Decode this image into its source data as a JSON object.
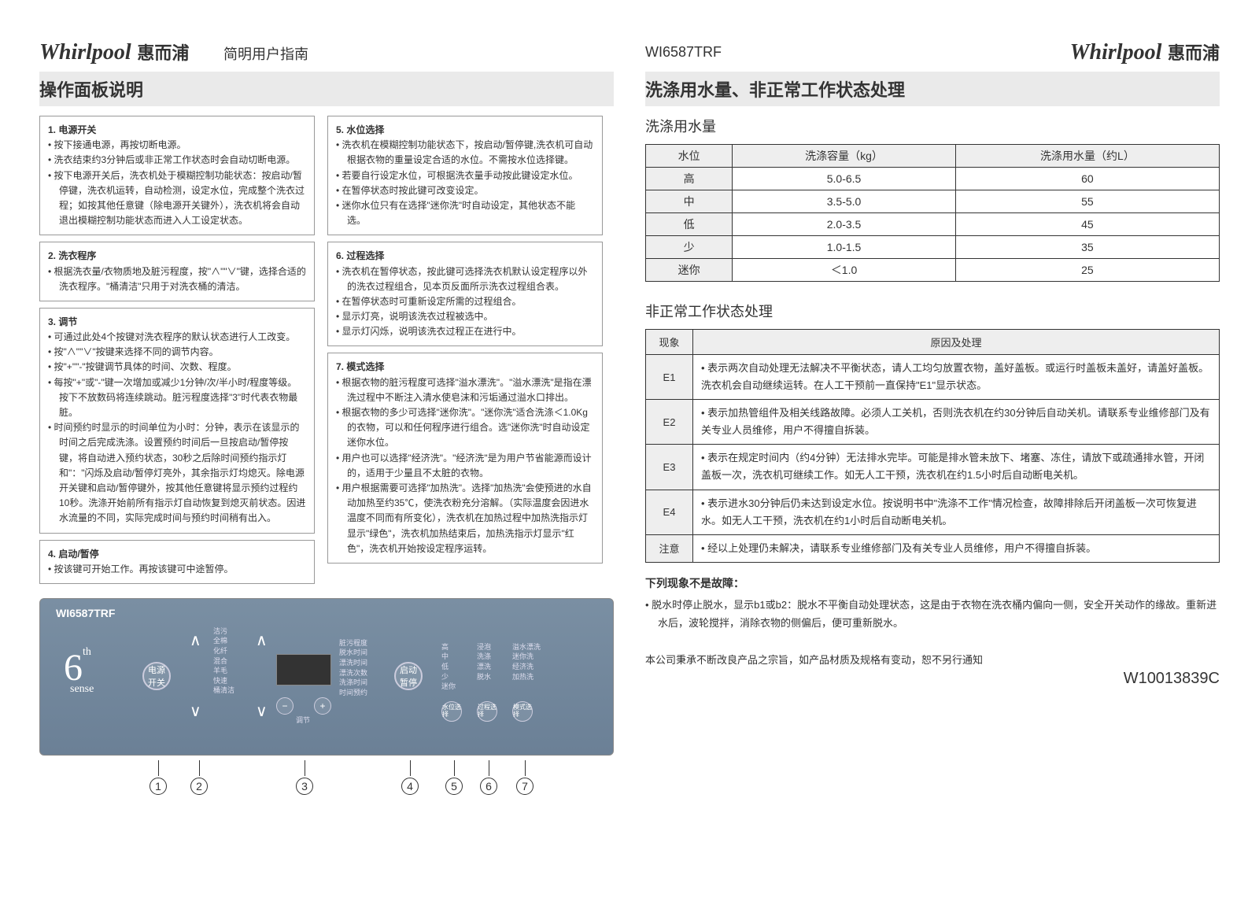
{
  "brand_en": "Whirlpool",
  "brand_cn": "惠而浦",
  "guide_title": "简明用户指南",
  "model": "WI6587TRF",
  "left_section_title": "操作面板说明",
  "right_section_title": "洗涤用水量、非正常工作状态处理",
  "instructions_left": [
    {
      "title": "1. 电源开关",
      "items": [
        "按下接通电源，再按切断电源。",
        "洗衣结束约3分钟后或非正常工作状态时会自动切断电源。",
        "按下电源开关后，洗衣机处于模糊控制功能状态：按启动/暂停键，洗衣机运转，自动检测，设定水位，完成整个洗衣过程；如按其他任意键（除电源开关键外），洗衣机将会自动退出模糊控制功能状态而进入人工设定状态。"
      ]
    },
    {
      "title": "2. 洗衣程序",
      "items": [
        "根据洗衣量/衣物质地及脏污程度，按\"∧\"\"∨\"键，选择合适的洗衣程序。\"桶清洁\"只用于对洗衣桶的清洁。"
      ]
    },
    {
      "title": "3. 调节",
      "items": [
        "可通过此处4个按键对洗衣程序的默认状态进行人工改变。",
        "按\"∧\"\"∨\"按键来选择不同的调节内容。",
        "按\"+\"\"-\"按键调节具体的时间、次数、程度。",
        "每按\"+\"或\"-\"键一次增加或减少1分钟/次/半小时/程度等级。按下不放数码将连续跳动。脏污程度选择\"3\"时代表衣物最脏。",
        "时间预约时显示的时间单位为小时：分钟，表示在该显示的时间之后完成洗涤。设置预约时间后一旦按启动/暂停按键，将自动进入预约状态，30秒之后除时间预约指示灯和\"：\"闪烁及启动/暂停灯亮外，其余指示灯均熄灭。除电源开关键和启动/暂停键外，按其他任意键将显示预约过程约10秒。洗涤开始前所有指示灯自动恢复到熄灭前状态。因进水流量的不同，实际完成时间与预约时间稍有出入。"
      ]
    },
    {
      "title": "4. 启动/暂停",
      "items": [
        "按该键可开始工作。再按该键可中途暂停。"
      ]
    }
  ],
  "instructions_right": [
    {
      "title": "5. 水位选择",
      "items": [
        "洗衣机在模糊控制功能状态下，按启动/暂停键,洗衣机可自动根据衣物的重量设定合适的水位。不需按水位选择键。",
        "若要自行设定水位，可根据洗衣量手动按此键设定水位。",
        "在暂停状态时按此键可改变设定。",
        "迷你水位只有在选择\"迷你洗\"时自动设定，其他状态不能选。"
      ]
    },
    {
      "title": "6. 过程选择",
      "items": [
        "洗衣机在暂停状态，按此键可选择洗衣机默认设定程序以外的洗衣过程组合，见本页反面所示洗衣过程组合表。",
        "在暂停状态时可重新设定所需的过程组合。",
        "显示灯亮，说明该洗衣过程被选中。",
        "显示灯闪烁，说明该洗衣过程正在进行中。"
      ]
    },
    {
      "title": "7. 模式选择",
      "items": [
        "根据衣物的脏污程度可选择\"溢水漂洗\"。\"溢水漂洗\"是指在漂洗过程中不断注入清水使皂沫和污垢通过溢水口排出。",
        "根据衣物的多少可选择\"迷你洗\"。\"迷你洗\"适合洗涤＜1.0Kg的衣物，可以和任何程序进行组合。选\"迷你洗\"时自动设定迷你水位。",
        "用户也可以选择\"经济洗\"。\"经济洗\"是为用户节省能源而设计的，适用于少量且不太脏的衣物。",
        "用户根据需要可选择\"加热洗\"。选择\"加热洗\"会使预进的水自动加热至约35℃，使洗衣粉充分溶解。（实际温度会因进水温度不同而有所变化），洗衣机在加热过程中加热洗指示灯显示\"绿色\"，洗衣机加热结束后，加热洗指示灯显示\"红色\"，洗衣机开始按设定程序运转。"
      ]
    }
  ],
  "water_heading": "洗涤用水量",
  "water_table": {
    "headers": [
      "水位",
      "洗涤容量（kg）",
      "洗涤用水量（约L）"
    ],
    "rows": [
      [
        "高",
        "5.0-6.5",
        "60"
      ],
      [
        "中",
        "3.5-5.0",
        "55"
      ],
      [
        "低",
        "2.0-3.5",
        "45"
      ],
      [
        "少",
        "1.0-1.5",
        "35"
      ],
      [
        "迷你",
        "＜1.0",
        "25"
      ]
    ]
  },
  "error_heading": "非正常工作状态处理",
  "error_table": {
    "headers": [
      "现象",
      "原因及处理"
    ],
    "rows": [
      [
        "E1",
        "• 表示两次自动处理无法解决不平衡状态，请人工均匀放置衣物，盖好盖板。或运行时盖板未盖好，请盖好盖板。洗衣机会自动继续运转。在人工干预前一直保持\"E1\"显示状态。"
      ],
      [
        "E2",
        "• 表示加热管组件及相关线路故障。必须人工关机，否则洗衣机在约30分钟后自动关机。请联系专业维修部门及有关专业人员维修，用户不得擅自拆装。"
      ],
      [
        "E3",
        "• 表示在规定时间内（约4分钟）无法排水完毕。可能是排水管未放下、堵塞、冻住，请放下或疏通排水管，开闭盖板一次，洗衣机可继续工作。如无人工干预，洗衣机在约1.5小时后自动断电关机。"
      ],
      [
        "E4",
        "• 表示进水30分钟后仍未达到设定水位。按说明书中\"洗涤不工作\"情况检查，故障排除后开闭盖板一次可恢复进水。如无人工干预，洗衣机在约1小时后自动断电关机。"
      ],
      [
        "注意",
        "• 经以上处理仍未解决，请联系专业维修部门及有关专业人员维修，用户不得擅自拆装。"
      ]
    ]
  },
  "not_fault_title": "下列现象不是故障：",
  "not_fault_text": "• 脱水时停止脱水，显示b1或b2：脱水不平衡自动处理状态，这是由于衣物在洗衣桶内偏向一侧，安全开关动作的缘故。重新进水后，波轮搅拌，消除衣物的侧偏后，便可重新脱水。",
  "disclaimer": "本公司秉承不断改良产品之宗旨，如产品材质及规格有变动，恕不另行通知",
  "doc_code": "W10013839C",
  "panel": {
    "model_label": "WI6587TRF",
    "power_btn": "电源开关",
    "start_btn": "启动暂停",
    "adjust_label": "调节",
    "programs": [
      "洁污",
      "全棉",
      "化纤",
      "混合",
      "羊毛",
      "快速",
      "桶清洁"
    ],
    "adjust_items": [
      "脏污程度",
      "脱水时间",
      "漂洗时间",
      "漂洗次数",
      "洗涤时间",
      "时间预约"
    ],
    "levels": [
      "高",
      "中",
      "低",
      "少",
      "迷你"
    ],
    "process": [
      "浸泡",
      "洗涤",
      "漂洗",
      "脱水"
    ],
    "modes": [
      "溢水漂洗",
      "迷你洗",
      "经济洗",
      "加热洗"
    ],
    "small_btns": [
      "水位选择",
      "过程选择",
      "模式选择"
    ]
  },
  "callouts": [
    "1",
    "2",
    "3",
    "4",
    "5",
    "6",
    "7"
  ]
}
